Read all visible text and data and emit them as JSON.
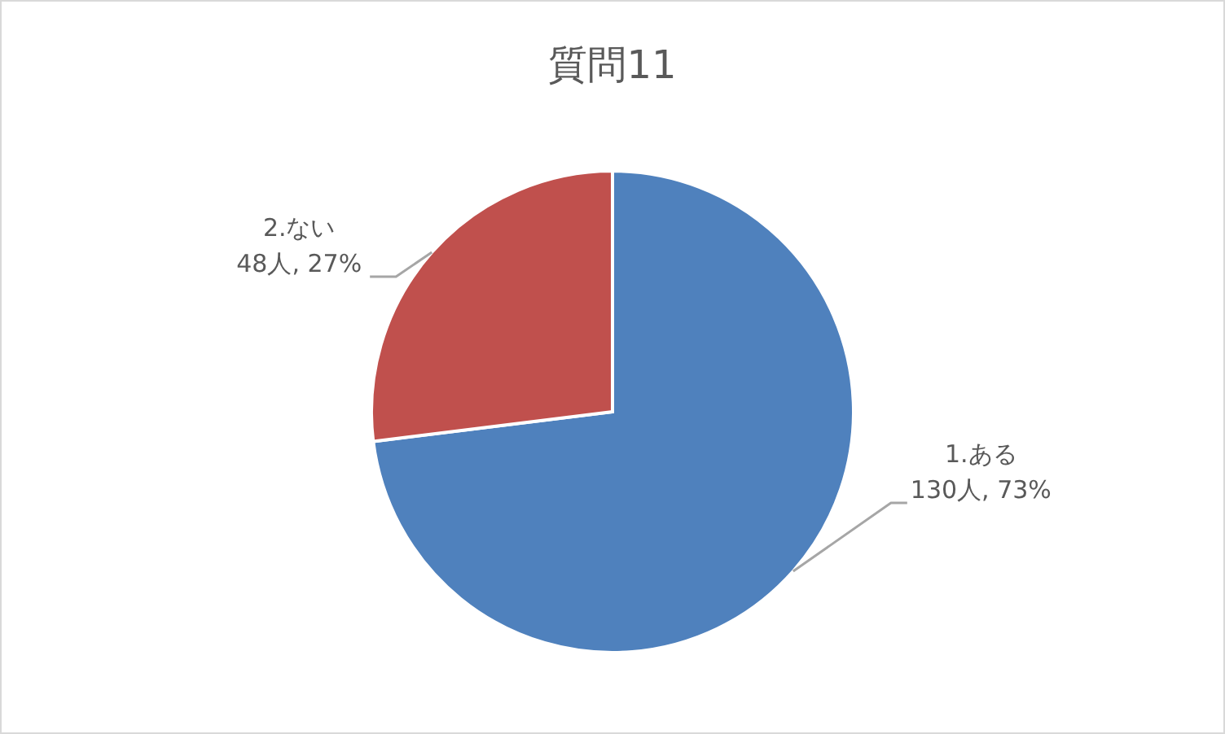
{
  "chart_data": {
    "type": "pie",
    "title": "質問11",
    "categories": [
      "1.ある",
      "2.ない"
    ],
    "values": [
      130,
      48
    ],
    "colors": [
      "#4f81bd",
      "#c0504d"
    ],
    "value_labels": [
      "130人, 73%",
      "48人, 27%"
    ]
  }
}
